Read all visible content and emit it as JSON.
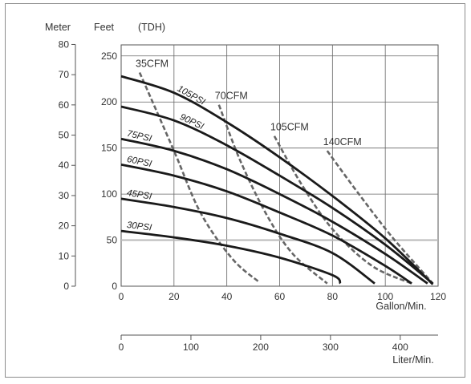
{
  "chart_data": {
    "type": "line",
    "headers": {
      "meter": "Meter",
      "feet": "Feet",
      "tdh": "(TDH)"
    },
    "x_label": "Gallon/Min.",
    "x2_label": "Liter/Min.",
    "x_ticks": [
      "0",
      "20",
      "40",
      "60",
      "80",
      "100",
      "120"
    ],
    "x2_ticks": [
      "0",
      "100",
      "200",
      "300",
      "400"
    ],
    "y_feet_ticks": [
      "0",
      "50",
      "100",
      "150",
      "200",
      "250"
    ],
    "y_meter_ticks": [
      "0",
      "10",
      "20",
      "30",
      "40",
      "50",
      "60",
      "70",
      "80"
    ],
    "xlim": [
      0,
      120
    ],
    "ylim_feet": [
      0,
      262
    ],
    "grid": true,
    "pressure_series": [
      {
        "name": "105PSI",
        "points": [
          [
            0,
            228
          ],
          [
            20,
            210
          ],
          [
            40,
            178
          ],
          [
            60,
            140
          ],
          [
            80,
            98
          ],
          [
            100,
            52
          ],
          [
            118,
            2
          ]
        ]
      },
      {
        "name": "90PSI",
        "points": [
          [
            0,
            195
          ],
          [
            20,
            180
          ],
          [
            40,
            153
          ],
          [
            60,
            120
          ],
          [
            80,
            85
          ],
          [
            100,
            45
          ],
          [
            118,
            3
          ]
        ]
      },
      {
        "name": "75PSI",
        "points": [
          [
            0,
            160
          ],
          [
            20,
            147
          ],
          [
            40,
            127
          ],
          [
            60,
            100
          ],
          [
            80,
            70
          ],
          [
            100,
            35
          ],
          [
            116,
            3
          ]
        ]
      },
      {
        "name": "60PSI",
        "points": [
          [
            0,
            132
          ],
          [
            20,
            120
          ],
          [
            40,
            103
          ],
          [
            60,
            80
          ],
          [
            80,
            55
          ],
          [
            100,
            22
          ],
          [
            110,
            3
          ]
        ]
      },
      {
        "name": "45PSI",
        "points": [
          [
            0,
            95
          ],
          [
            20,
            86
          ],
          [
            40,
            74
          ],
          [
            60,
            57
          ],
          [
            80,
            36
          ],
          [
            96,
            3
          ]
        ]
      },
      {
        "name": "30PSI",
        "points": [
          [
            0,
            60
          ],
          [
            20,
            53
          ],
          [
            40,
            44
          ],
          [
            60,
            31
          ],
          [
            80,
            12
          ],
          [
            83,
            3
          ]
        ]
      }
    ],
    "air_consumption_series": [
      {
        "name": "35CFM",
        "points": [
          [
            7,
            232
          ],
          [
            20,
            147
          ],
          [
            30,
            80
          ],
          [
            42,
            30
          ],
          [
            52,
            5
          ]
        ]
      },
      {
        "name": "70CFM",
        "points": [
          [
            37,
            197
          ],
          [
            45,
            137
          ],
          [
            55,
            78
          ],
          [
            65,
            35
          ],
          [
            78,
            3
          ]
        ]
      },
      {
        "name": "105CFM",
        "points": [
          [
            58,
            163
          ],
          [
            68,
            112
          ],
          [
            80,
            62
          ],
          [
            95,
            22
          ],
          [
            110,
            3
          ]
        ]
      },
      {
        "name": "140CFM",
        "points": [
          [
            78,
            147
          ],
          [
            90,
            100
          ],
          [
            103,
            52
          ],
          [
            118,
            3
          ]
        ]
      }
    ],
    "reference_line_feet": 50
  }
}
